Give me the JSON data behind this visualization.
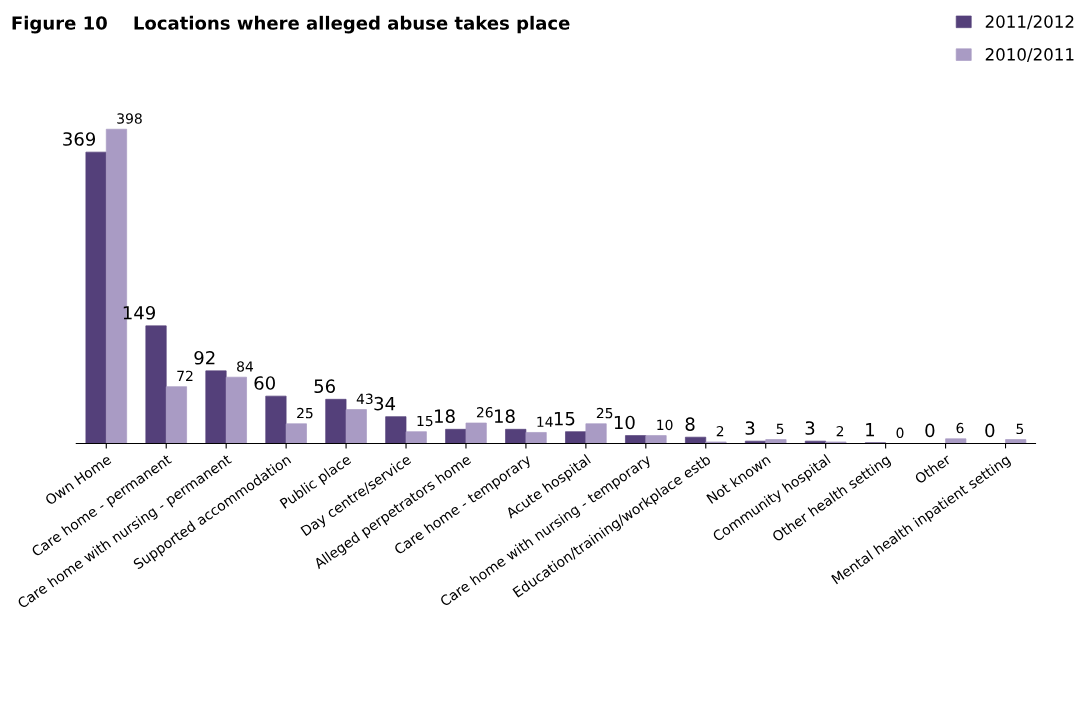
{
  "chart_data": {
    "type": "bar",
    "title": "Figure 10    Locations where alleged abuse takes place",
    "categories": [
      "Own Home",
      "Care home - permanent",
      "Care home with nursing - permanent",
      "Supported accommodation",
      "Public place",
      "Day centre/service",
      "Alleged perpetrators home",
      "Care home - temporary",
      "Acute hospital",
      "Care home with nursing - temporary",
      "Education/training/workplace estb",
      "Not known",
      "Community hospital",
      "Other health setting",
      "Other",
      "Mental health inpatient setting"
    ],
    "series": [
      {
        "name": "2011/2012",
        "color": "#54407a",
        "values": [
          369,
          149,
          92,
          60,
          56,
          34,
          18,
          18,
          15,
          10,
          8,
          3,
          3,
          1,
          0,
          0
        ]
      },
      {
        "name": "2010/2011",
        "color": "#a99bc4",
        "values": [
          398,
          72,
          84,
          25,
          43,
          15,
          26,
          14,
          25,
          10,
          2,
          5,
          2,
          0,
          6,
          5
        ]
      }
    ],
    "data_labels": true,
    "legend": "top right",
    "grid": false
  }
}
